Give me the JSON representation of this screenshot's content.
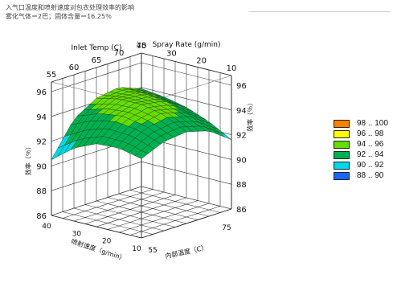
{
  "header": {
    "line1": "入气口温度和喷射速度对包衣处理效率的影响",
    "line2": "雾化气体＝2巴；固体含量＝16.25％"
  },
  "chart_data": {
    "type": "surface3d",
    "x_axis": {
      "label": "Inlet Temp (C)",
      "ticks": [
        "55",
        "60",
        "65",
        "70",
        "75"
      ],
      "range": [
        55,
        75
      ]
    },
    "y_axis": {
      "label": "Spray Rate (g/min)",
      "ticks": [
        "40",
        "30",
        "20",
        "10"
      ],
      "range": [
        10,
        40
      ]
    },
    "z_axis": {
      "label_left": "效率（％）",
      "label_right": "效率（％）",
      "ticks": [
        "86",
        "88",
        "90",
        "92",
        "94",
        "96"
      ],
      "range": [
        86,
        96
      ]
    },
    "floor_labels": {
      "left": "喷射速度（g/min）",
      "right": "内部温度（C）"
    },
    "floor_left_ticks": [
      "40",
      "30",
      "20",
      "10"
    ],
    "floor_right_ticks": [
      "55",
      "75"
    ],
    "grid": true,
    "surface": {
      "x": [
        55,
        60,
        65,
        70,
        75
      ],
      "y": [
        10,
        17.5,
        25,
        32.5,
        40
      ],
      "z": [
        [
          91.6,
          92.6,
          93.3,
          93.7,
          93.9
        ],
        [
          92.9,
          93.8,
          94.4,
          94.6,
          94.6
        ],
        [
          93.4,
          94.3,
          94.7,
          94.7,
          94.3
        ],
        [
          93.2,
          93.9,
          94.2,
          93.9,
          93.2
        ],
        [
          92.4,
          92.8,
          92.7,
          91.9,
          90.5
        ]
      ]
    },
    "color_bands": [
      {
        "label": "98 .. 100",
        "color": "#ff8000"
      },
      {
        "label": "96 .. 98",
        "color": "#ffff00"
      },
      {
        "label": "94 .. 96",
        "color": "#66dd00"
      },
      {
        "label": "92 .. 94",
        "color": "#00b050"
      },
      {
        "label": "90 .. 92",
        "color": "#00d8e8"
      },
      {
        "label": "88 .. 90",
        "color": "#1a66ff"
      }
    ],
    "legend_position": "right"
  }
}
